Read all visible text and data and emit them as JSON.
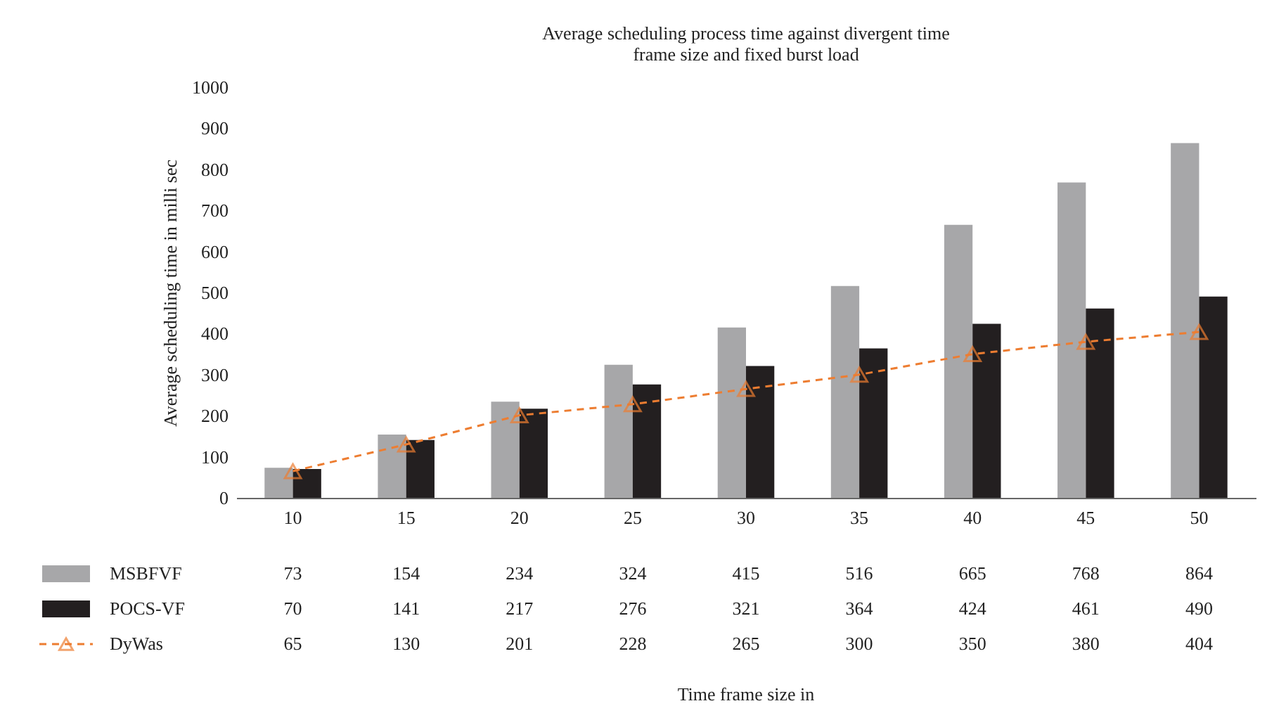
{
  "chart_data": {
    "type": "bar",
    "title": "Average scheduling process time against divergent time frame size and fixed burst load",
    "annotations": [
      "Time frame size in"
    ],
    "ylabel": "Average scheduling time in milli sec",
    "categories": [
      "10",
      "15",
      "20",
      "25",
      "30",
      "35",
      "40",
      "45",
      "50"
    ],
    "series": [
      {
        "name": "MSBFVF",
        "type": "bar",
        "color": "#a7a7a9",
        "values": [
          73,
          154,
          234,
          324,
          415,
          516,
          665,
          768,
          864
        ]
      },
      {
        "name": "POCS-VF",
        "type": "bar",
        "color": "#231f20",
        "values": [
          70,
          141,
          217,
          276,
          321,
          364,
          424,
          461,
          490
        ]
      },
      {
        "name": "DyWas",
        "type": "line",
        "color": "#ed7d31",
        "marker": "triangle",
        "line_style": "dashed",
        "values": [
          65,
          130,
          201,
          228,
          265,
          300,
          350,
          380,
          404
        ]
      }
    ],
    "ylim": [
      0,
      1000
    ],
    "yticks": [
      0,
      100,
      200,
      300,
      400,
      500,
      600,
      700,
      800,
      900,
      1000
    ],
    "grid": false,
    "legend": "bottom",
    "data_labels": true
  }
}
